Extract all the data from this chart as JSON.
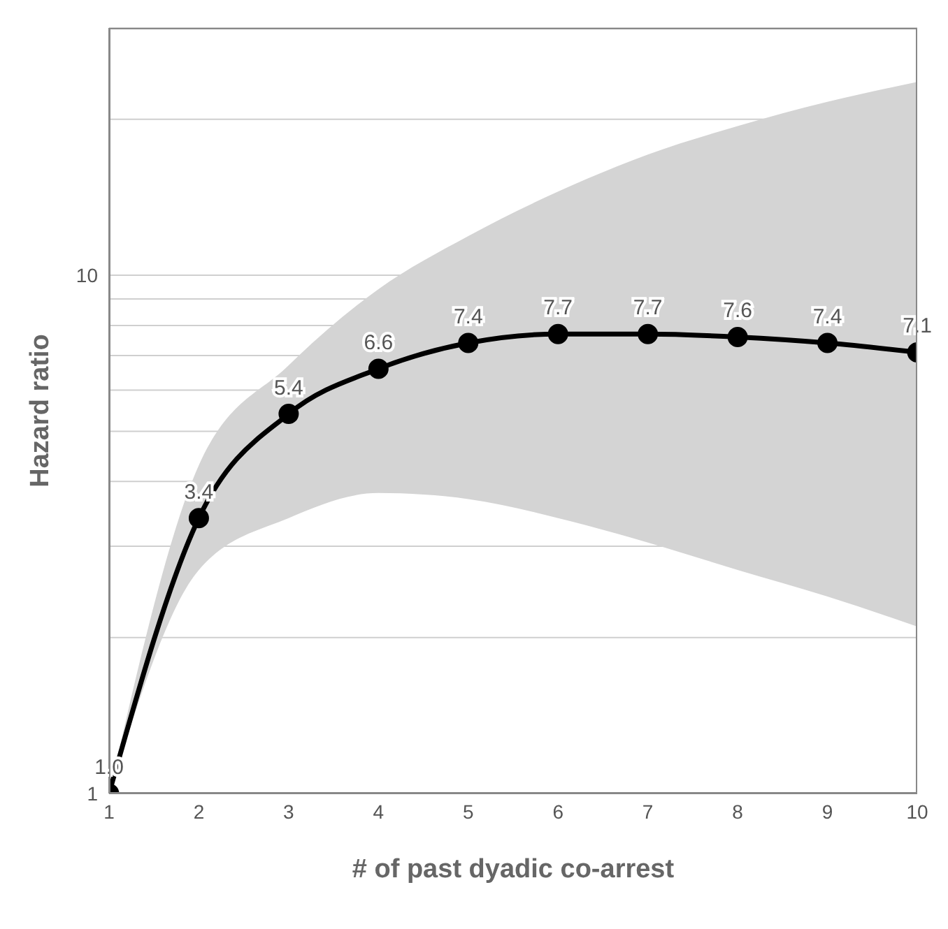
{
  "chart_data": {
    "type": "line",
    "xlabel": "# of past dyadic co-arrest",
    "ylabel": "Hazard ratio",
    "x": [
      1,
      2,
      3,
      4,
      5,
      6,
      7,
      8,
      9,
      10
    ],
    "series": [
      {
        "color": "#000000",
        "values": [
          1.0,
          3.4,
          5.4,
          6.6,
          7.4,
          7.7,
          7.7,
          7.6,
          7.4,
          7.1
        ],
        "value_labels": [
          "1.0",
          "3.4",
          "5.4",
          "6.6",
          "7.4",
          "7.7",
          "7.7",
          "7.6",
          "7.4",
          "7.1"
        ],
        "lower": [
          1.0,
          2.7,
          3.4,
          3.8,
          3.7,
          3.4,
          3.05,
          2.7,
          2.4,
          2.1
        ],
        "upper": [
          1.0,
          4.3,
          6.7,
          9.4,
          11.9,
          14.5,
          17.1,
          19.4,
          21.6,
          23.6
        ]
      }
    ],
    "xlim": [
      1,
      10
    ],
    "xticks": [
      1,
      2,
      3,
      4,
      5,
      6,
      7,
      8,
      9,
      10
    ],
    "ylim": [
      1,
      30
    ],
    "yticks": [
      1,
      {
        "value": 2,
        "label": null
      },
      {
        "value": 3,
        "label": null
      },
      {
        "value": 4,
        "label": null
      },
      {
        "value": 5,
        "label": null
      },
      {
        "value": 6,
        "label": null
      },
      {
        "value": 7,
        "label": null
      },
      {
        "value": 8,
        "label": null
      },
      {
        "value": 9,
        "label": null
      },
      10,
      {
        "value": 20,
        "label": null
      }
    ],
    "log": "y",
    "grid": "y",
    "marker": "circle",
    "line_style": "solid"
  }
}
